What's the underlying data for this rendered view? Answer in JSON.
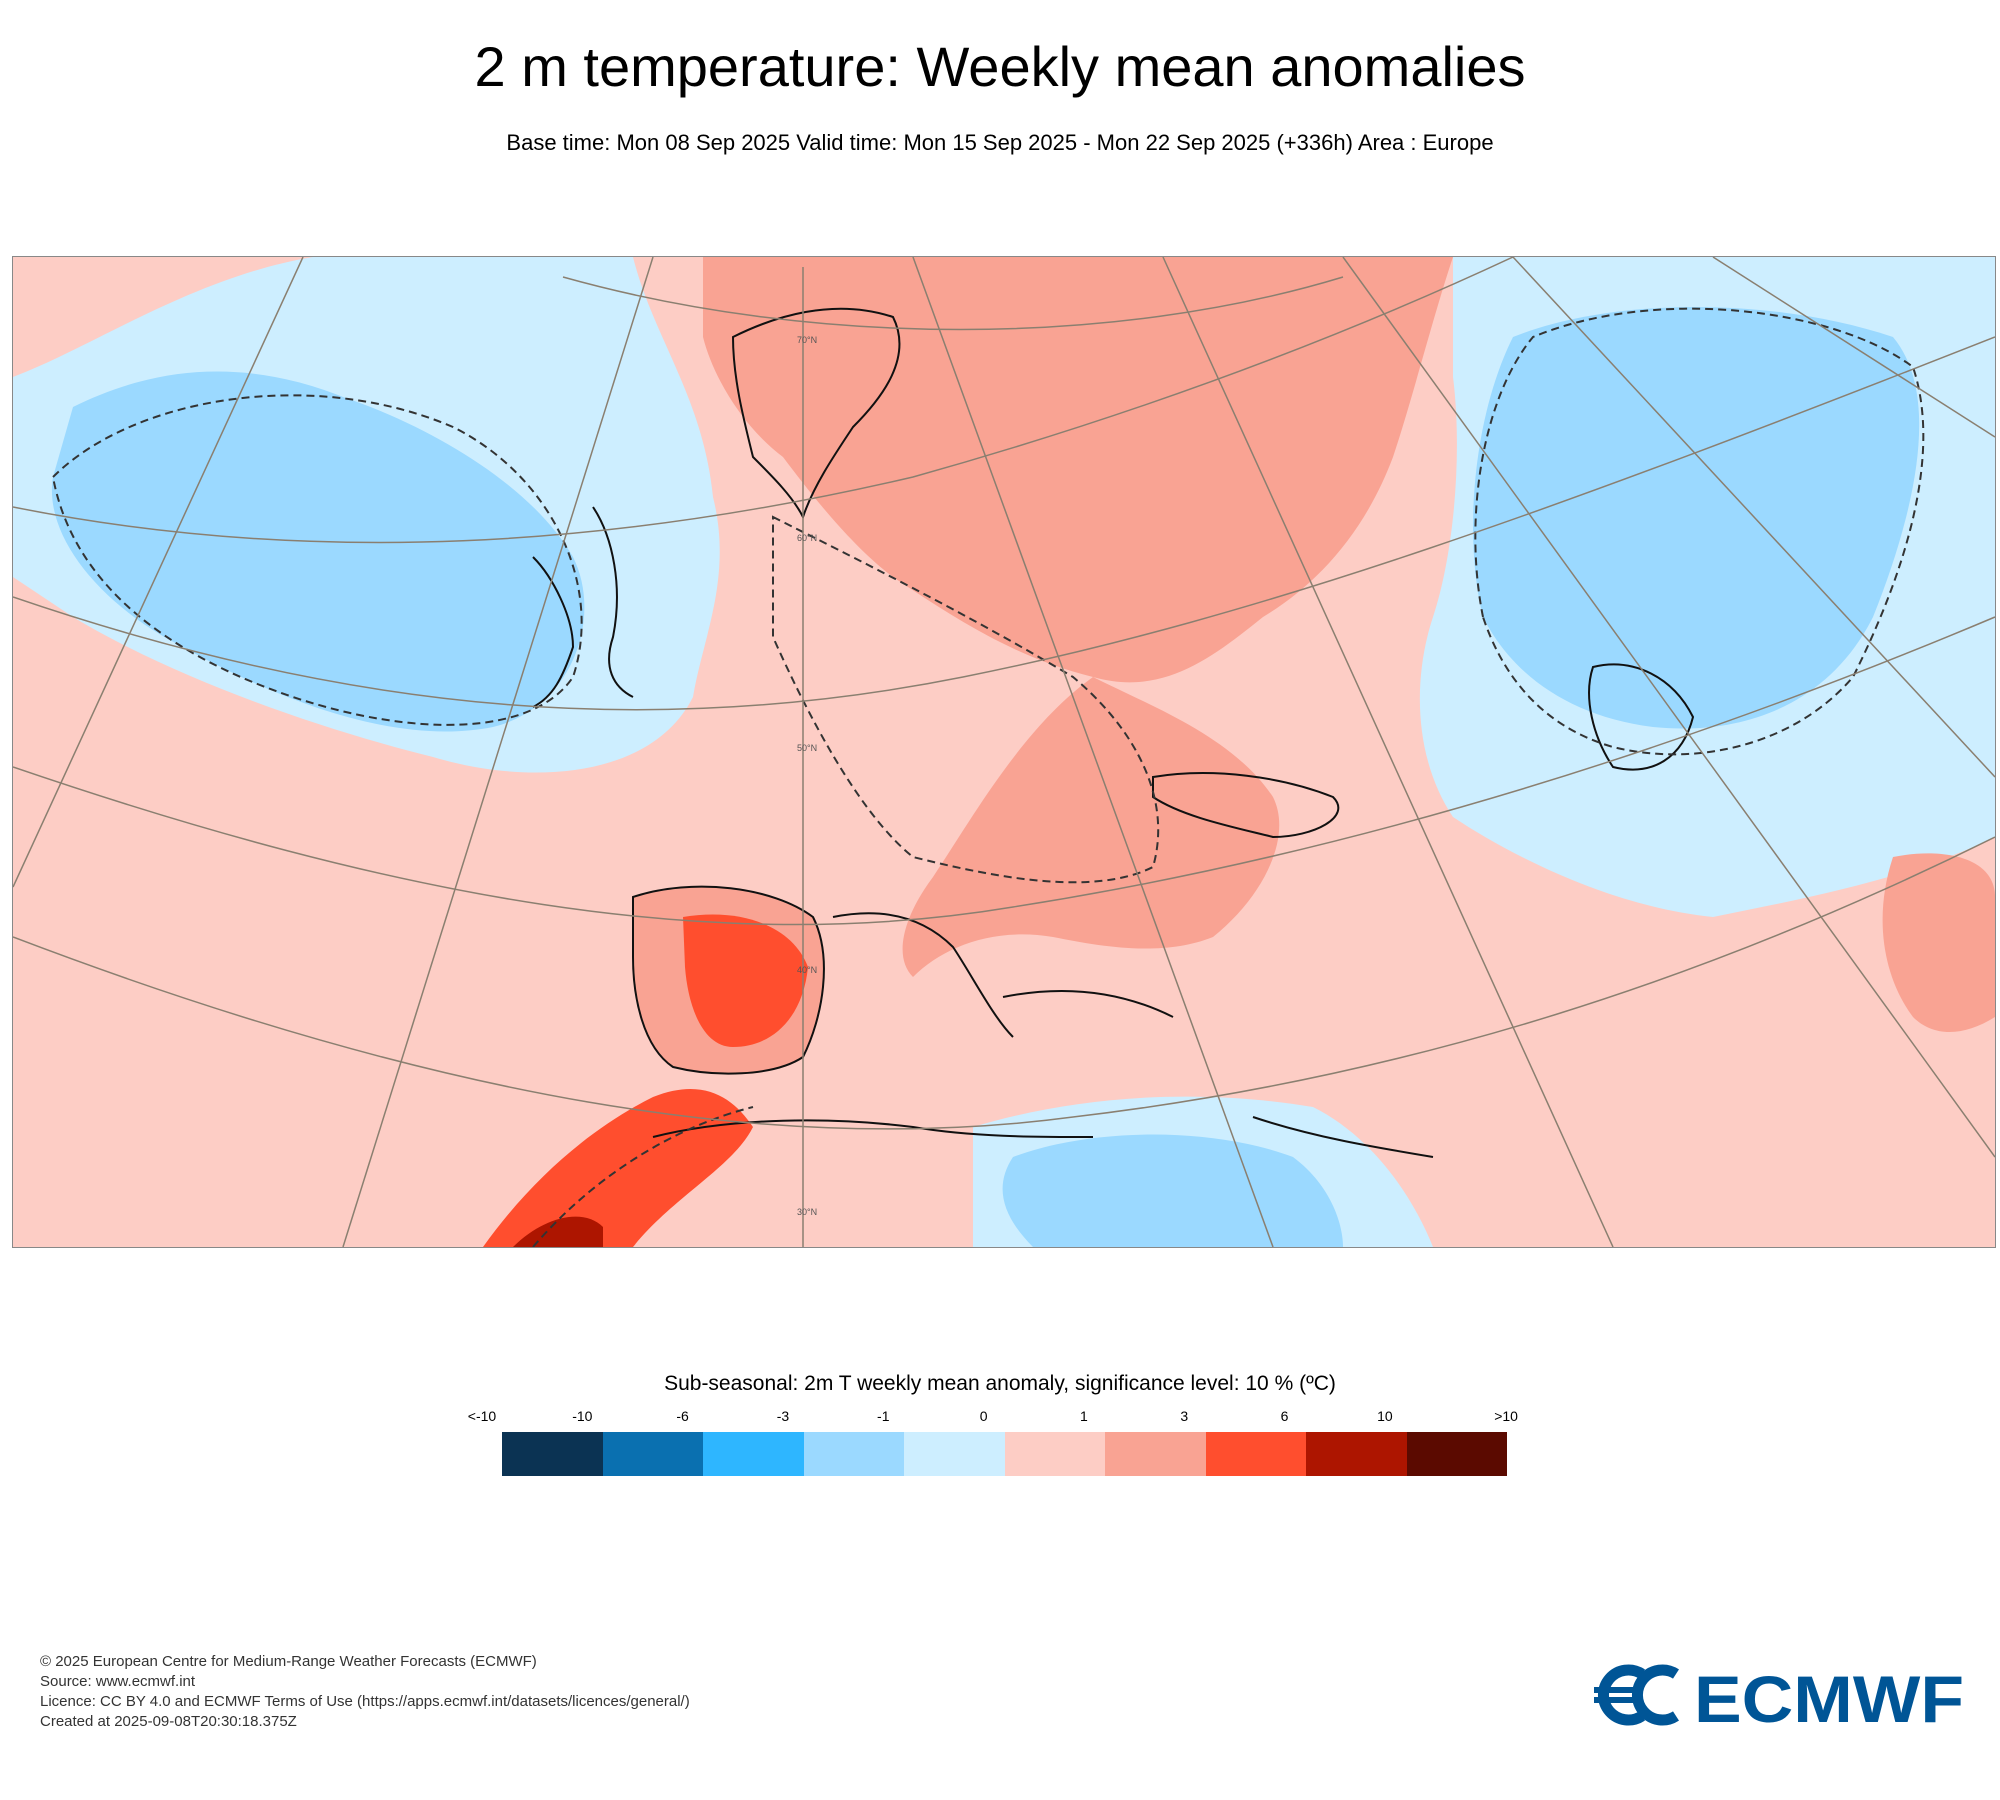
{
  "header": {
    "title": "2 m temperature: Weekly mean anomalies",
    "subtitle": "Base time: Mon 08 Sep 2025 Valid time: Mon 15 Sep 2025 - Mon 22 Sep 2025 (+336h) Area : Europe"
  },
  "map": {
    "latitude_labels": [
      "70°N",
      "60°N",
      "50°N",
      "40°N",
      "30°N"
    ],
    "colors": {
      "land_outline": "#111111",
      "graticule": "#8a7f70",
      "significance_contour": "#333333"
    }
  },
  "legend": {
    "title": "Sub-seasonal: 2m T weekly mean anomaly, significance level: 10 % (ºC)",
    "ticks": [
      "<-10",
      "-10",
      "-6",
      "-3",
      "-1",
      "0",
      "1",
      "3",
      "6",
      "10",
      ">10"
    ],
    "colors": [
      "#0b3353",
      "#0a70b0",
      "#2eb6ff",
      "#9bd9ff",
      "#cdeeff",
      "#fdcdc5",
      "#f9a393",
      "#ff4e2e",
      "#ad1500",
      "#5b0a00"
    ]
  },
  "footer": {
    "lines": [
      "© 2025 European Centre for Medium-Range Weather Forecasts (ECMWF)",
      "Source: www.ecmwf.int",
      "Licence: CC BY 4.0 and ECMWF Terms of Use (https://apps.ecmwf.int/datasets/licences/general/)",
      "Created at 2025-09-08T20:30:18.375Z"
    ]
  },
  "logo": {
    "text": "ECMWF",
    "color": "#005596"
  }
}
